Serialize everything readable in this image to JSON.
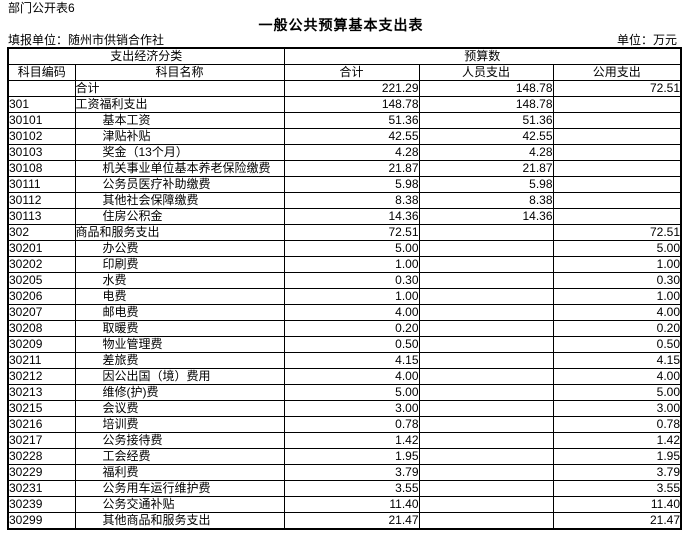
{
  "page": {
    "doc_label": "部门公开表6",
    "title": "一般公共预算基本支出表",
    "reporting_unit_label": "填报单位：随州市供销合作社",
    "unit_label": "单位：万元"
  },
  "colors": {
    "text": "#000000",
    "border": "#000000",
    "background": "#ffffff"
  },
  "table": {
    "header": {
      "classification": "支出经济分类",
      "budget": "预算数",
      "col_code": "科目编码",
      "col_name": "科目名称",
      "col_total": "合计",
      "col_personnel": "人员支出",
      "col_public": "公用支出"
    },
    "rows": [
      {
        "code": "",
        "name": "合计",
        "indent": 0,
        "total": "221.29",
        "personnel": "148.78",
        "public": "72.51"
      },
      {
        "code": "301",
        "name": "工资福利支出",
        "indent": 0,
        "total": "148.78",
        "personnel": "148.78",
        "public": ""
      },
      {
        "code": "30101",
        "name": "基本工资",
        "indent": 1,
        "total": "51.36",
        "personnel": "51.36",
        "public": ""
      },
      {
        "code": "30102",
        "name": "津贴补贴",
        "indent": 1,
        "total": "42.55",
        "personnel": "42.55",
        "public": ""
      },
      {
        "code": "30103",
        "name": "奖金（13个月）",
        "indent": 1,
        "total": "4.28",
        "personnel": "4.28",
        "public": ""
      },
      {
        "code": "30108",
        "name": "机关事业单位基本养老保险缴费",
        "indent": 1,
        "total": "21.87",
        "personnel": "21.87",
        "public": ""
      },
      {
        "code": "30111",
        "name": "公务员医疗补助缴费",
        "indent": 1,
        "total": "5.98",
        "personnel": "5.98",
        "public": ""
      },
      {
        "code": "30112",
        "name": "其他社会保障缴费",
        "indent": 1,
        "total": "8.38",
        "personnel": "8.38",
        "public": ""
      },
      {
        "code": "30113",
        "name": "住房公积金",
        "indent": 1,
        "total": "14.36",
        "personnel": "14.36",
        "public": ""
      },
      {
        "code": "302",
        "name": "商品和服务支出",
        "indent": 0,
        "total": "72.51",
        "personnel": "",
        "public": "72.51"
      },
      {
        "code": "30201",
        "name": "办公费",
        "indent": 1,
        "total": "5.00",
        "personnel": "",
        "public": "5.00"
      },
      {
        "code": "30202",
        "name": "印刷费",
        "indent": 1,
        "total": "1.00",
        "personnel": "",
        "public": "1.00"
      },
      {
        "code": "30205",
        "name": "水费",
        "indent": 1,
        "total": "0.30",
        "personnel": "",
        "public": "0.30"
      },
      {
        "code": "30206",
        "name": "电费",
        "indent": 1,
        "total": "1.00",
        "personnel": "",
        "public": "1.00"
      },
      {
        "code": "30207",
        "name": "邮电费",
        "indent": 1,
        "total": "4.00",
        "personnel": "",
        "public": "4.00"
      },
      {
        "code": "30208",
        "name": "取暖费",
        "indent": 1,
        "total": "0.20",
        "personnel": "",
        "public": "0.20"
      },
      {
        "code": "30209",
        "name": "物业管理费",
        "indent": 1,
        "total": "0.50",
        "personnel": "",
        "public": "0.50"
      },
      {
        "code": "30211",
        "name": "差旅费",
        "indent": 1,
        "total": "4.15",
        "personnel": "",
        "public": "4.15"
      },
      {
        "code": "30212",
        "name": "因公出国（境）费用",
        "indent": 1,
        "total": "4.00",
        "personnel": "",
        "public": "4.00"
      },
      {
        "code": "30213",
        "name": "维修(护)费",
        "indent": 1,
        "total": "5.00",
        "personnel": "",
        "public": "5.00"
      },
      {
        "code": "30215",
        "name": "会议费",
        "indent": 1,
        "total": "3.00",
        "personnel": "",
        "public": "3.00"
      },
      {
        "code": "30216",
        "name": "培训费",
        "indent": 1,
        "total": "0.78",
        "personnel": "",
        "public": "0.78"
      },
      {
        "code": "30217",
        "name": "公务接待费",
        "indent": 1,
        "total": "1.42",
        "personnel": "",
        "public": "1.42"
      },
      {
        "code": "30228",
        "name": "工会经费",
        "indent": 1,
        "total": "1.95",
        "personnel": "",
        "public": "1.95"
      },
      {
        "code": "30229",
        "name": "福利费",
        "indent": 1,
        "total": "3.79",
        "personnel": "",
        "public": "3.79"
      },
      {
        "code": "30231",
        "name": "公务用车运行维护费",
        "indent": 1,
        "total": "3.55",
        "personnel": "",
        "public": "3.55"
      },
      {
        "code": "30239",
        "name": "公务交通补贴",
        "indent": 1,
        "total": "11.40",
        "personnel": "",
        "public": "11.40"
      },
      {
        "code": "30299",
        "name": "其他商品和服务支出",
        "indent": 1,
        "total": "21.47",
        "personnel": "",
        "public": "21.47"
      }
    ]
  }
}
